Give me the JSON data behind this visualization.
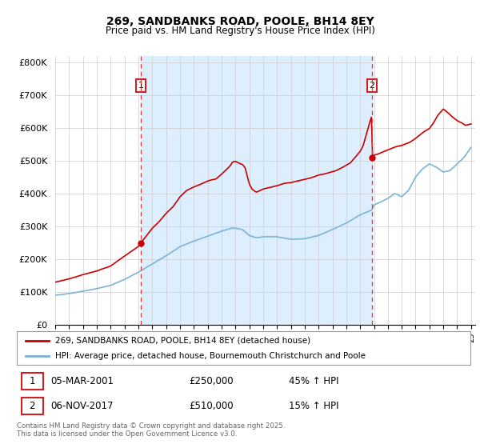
{
  "title1": "269, SANDBANKS ROAD, POOLE, BH14 8EY",
  "title2": "Price paid vs. HM Land Registry's House Price Index (HPI)",
  "ylim": [
    0,
    820000
  ],
  "yticks": [
    0,
    100000,
    200000,
    300000,
    400000,
    500000,
    600000,
    700000,
    800000
  ],
  "ytick_labels": [
    "£0",
    "£100K",
    "£200K",
    "£300K",
    "£400K",
    "£500K",
    "£600K",
    "£700K",
    "£800K"
  ],
  "sale1_date": 2001.17,
  "sale1_price": 250000,
  "sale2_date": 2017.85,
  "sale2_price": 510000,
  "line_color_property": "#cc0000",
  "line_color_hpi": "#7ab3d8",
  "fill_color": "#ddeeff",
  "vline_color": "#dd4444",
  "legend_property": "269, SANDBANKS ROAD, POOLE, BH14 8EY (detached house)",
  "legend_hpi": "HPI: Average price, detached house, Bournemouth Christchurch and Poole",
  "table_row1": [
    "1",
    "05-MAR-2001",
    "£250,000",
    "45% ↑ HPI"
  ],
  "table_row2": [
    "2",
    "06-NOV-2017",
    "£510,000",
    "15% ↑ HPI"
  ],
  "footnote": "Contains HM Land Registry data © Crown copyright and database right 2025.\nThis data is licensed under the Open Government Licence v3.0.",
  "background_color": "#ffffff",
  "grid_color": "#cccccc",
  "xlim_start": 1995,
  "xlim_end": 2025.3
}
